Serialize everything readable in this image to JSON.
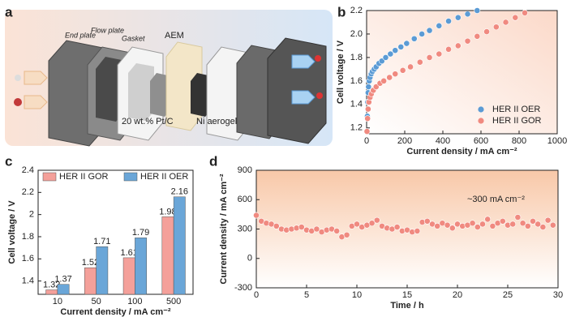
{
  "panel_labels": [
    "a",
    "b",
    "c",
    "d"
  ],
  "diagram": {
    "labels": [
      "End plate",
      "Flow plate",
      "Gasket",
      "AEM",
      "20 wt.% Pt/C",
      "Ni aerogel"
    ]
  },
  "chart_data": [
    {
      "type": "scatter",
      "xlabel": "Current density / mA cm⁻²",
      "ylabel": "Cell voltage / V",
      "xlim": [
        0,
        1000
      ],
      "xticks": [
        0,
        200,
        400,
        600,
        800,
        1000
      ],
      "ylim": [
        1.15,
        2.2
      ],
      "yticks": [
        1.2,
        1.4,
        1.6,
        1.8,
        {
          "value": 2,
          "label": "2.0"
        },
        2.2
      ],
      "legend": "lower right",
      "series": [
        {
          "name": "HER II OER",
          "color": "#5b9bd5",
          "x": [
            2,
            4,
            6,
            8,
            10,
            14,
            18,
            24,
            30,
            40,
            50,
            65,
            80,
            100,
            125,
            150,
            180,
            210,
            250,
            290,
            330,
            380,
            430,
            480,
            530,
            580
          ],
          "values": [
            1.17,
            1.3,
            1.42,
            1.5,
            1.55,
            1.6,
            1.63,
            1.66,
            1.68,
            1.7,
            1.72,
            1.75,
            1.77,
            1.8,
            1.83,
            1.86,
            1.89,
            1.92,
            1.96,
            2.0,
            2.03,
            2.07,
            2.11,
            2.14,
            2.17,
            2.2
          ]
        },
        {
          "name": "HER II GOR",
          "color": "#f08a80",
          "x": [
            2,
            5,
            8,
            12,
            18,
            25,
            35,
            50,
            70,
            90,
            120,
            150,
            190,
            230,
            280,
            330,
            380,
            430,
            480,
            530,
            580,
            630,
            680,
            730,
            780,
            830
          ],
          "values": [
            1.17,
            1.28,
            1.36,
            1.42,
            1.46,
            1.49,
            1.52,
            1.55,
            1.58,
            1.6,
            1.63,
            1.66,
            1.69,
            1.72,
            1.76,
            1.8,
            1.83,
            1.87,
            1.9,
            1.94,
            1.98,
            2.02,
            2.06,
            2.1,
            2.14,
            2.18
          ]
        }
      ]
    },
    {
      "type": "bar",
      "xlabel": "Current density / mA cm⁻²",
      "ylabel": "Cell voltage / V",
      "categories": [
        "10",
        "50",
        "100",
        "500"
      ],
      "ylim": [
        1.28,
        2.4
      ],
      "yticks": [
        1.4,
        1.6,
        1.8,
        2,
        2.2,
        2.4
      ],
      "legend": "upper left",
      "series": [
        {
          "name": "HER II GOR",
          "color": "#f4a09a",
          "values": [
            1.32,
            1.52,
            1.61,
            1.98
          ]
        },
        {
          "name": "HER II OER",
          "color": "#6aa6d8",
          "values": [
            1.37,
            1.71,
            1.79,
            2.16
          ]
        }
      ]
    },
    {
      "type": "scatter",
      "xlabel": "Time / h",
      "ylabel": "Current density / mA cm⁻²",
      "annotation": "~300 mA cm⁻²",
      "xlim": [
        0,
        30
      ],
      "xticks": [
        0,
        5,
        10,
        15,
        20,
        25,
        30
      ],
      "ylim": [
        -300,
        900
      ],
      "yticks": [
        -300,
        0,
        300,
        600,
        900
      ],
      "series": [
        {
          "color": "#f08a80",
          "x": [
            0,
            0.5,
            1,
            1.5,
            2,
            2.5,
            3,
            3.5,
            4,
            4.5,
            5,
            5.5,
            6,
            6.5,
            7,
            7.5,
            8,
            8.5,
            9,
            9.5,
            10,
            10.5,
            11,
            11.5,
            12,
            12.5,
            13,
            13.5,
            14,
            14.5,
            15,
            15.5,
            16,
            16.5,
            17,
            17.5,
            18,
            18.5,
            19,
            19.5,
            20,
            20.5,
            21,
            21.5,
            22,
            22.5,
            23,
            23.5,
            24,
            24.5,
            25,
            25.5,
            26,
            26.5,
            27,
            27.5,
            28,
            28.5,
            29,
            29.5
          ],
          "values": [
            440,
            380,
            360,
            350,
            330,
            300,
            290,
            300,
            310,
            320,
            290,
            280,
            300,
            270,
            290,
            300,
            280,
            220,
            240,
            330,
            350,
            320,
            340,
            360,
            390,
            330,
            310,
            300,
            320,
            280,
            290,
            270,
            280,
            370,
            380,
            350,
            330,
            360,
            340,
            310,
            350,
            330,
            340,
            360,
            320,
            350,
            400,
            330,
            360,
            380,
            340,
            350,
            420,
            360,
            330,
            380,
            350,
            320,
            390,
            340
          ]
        }
      ]
    }
  ]
}
